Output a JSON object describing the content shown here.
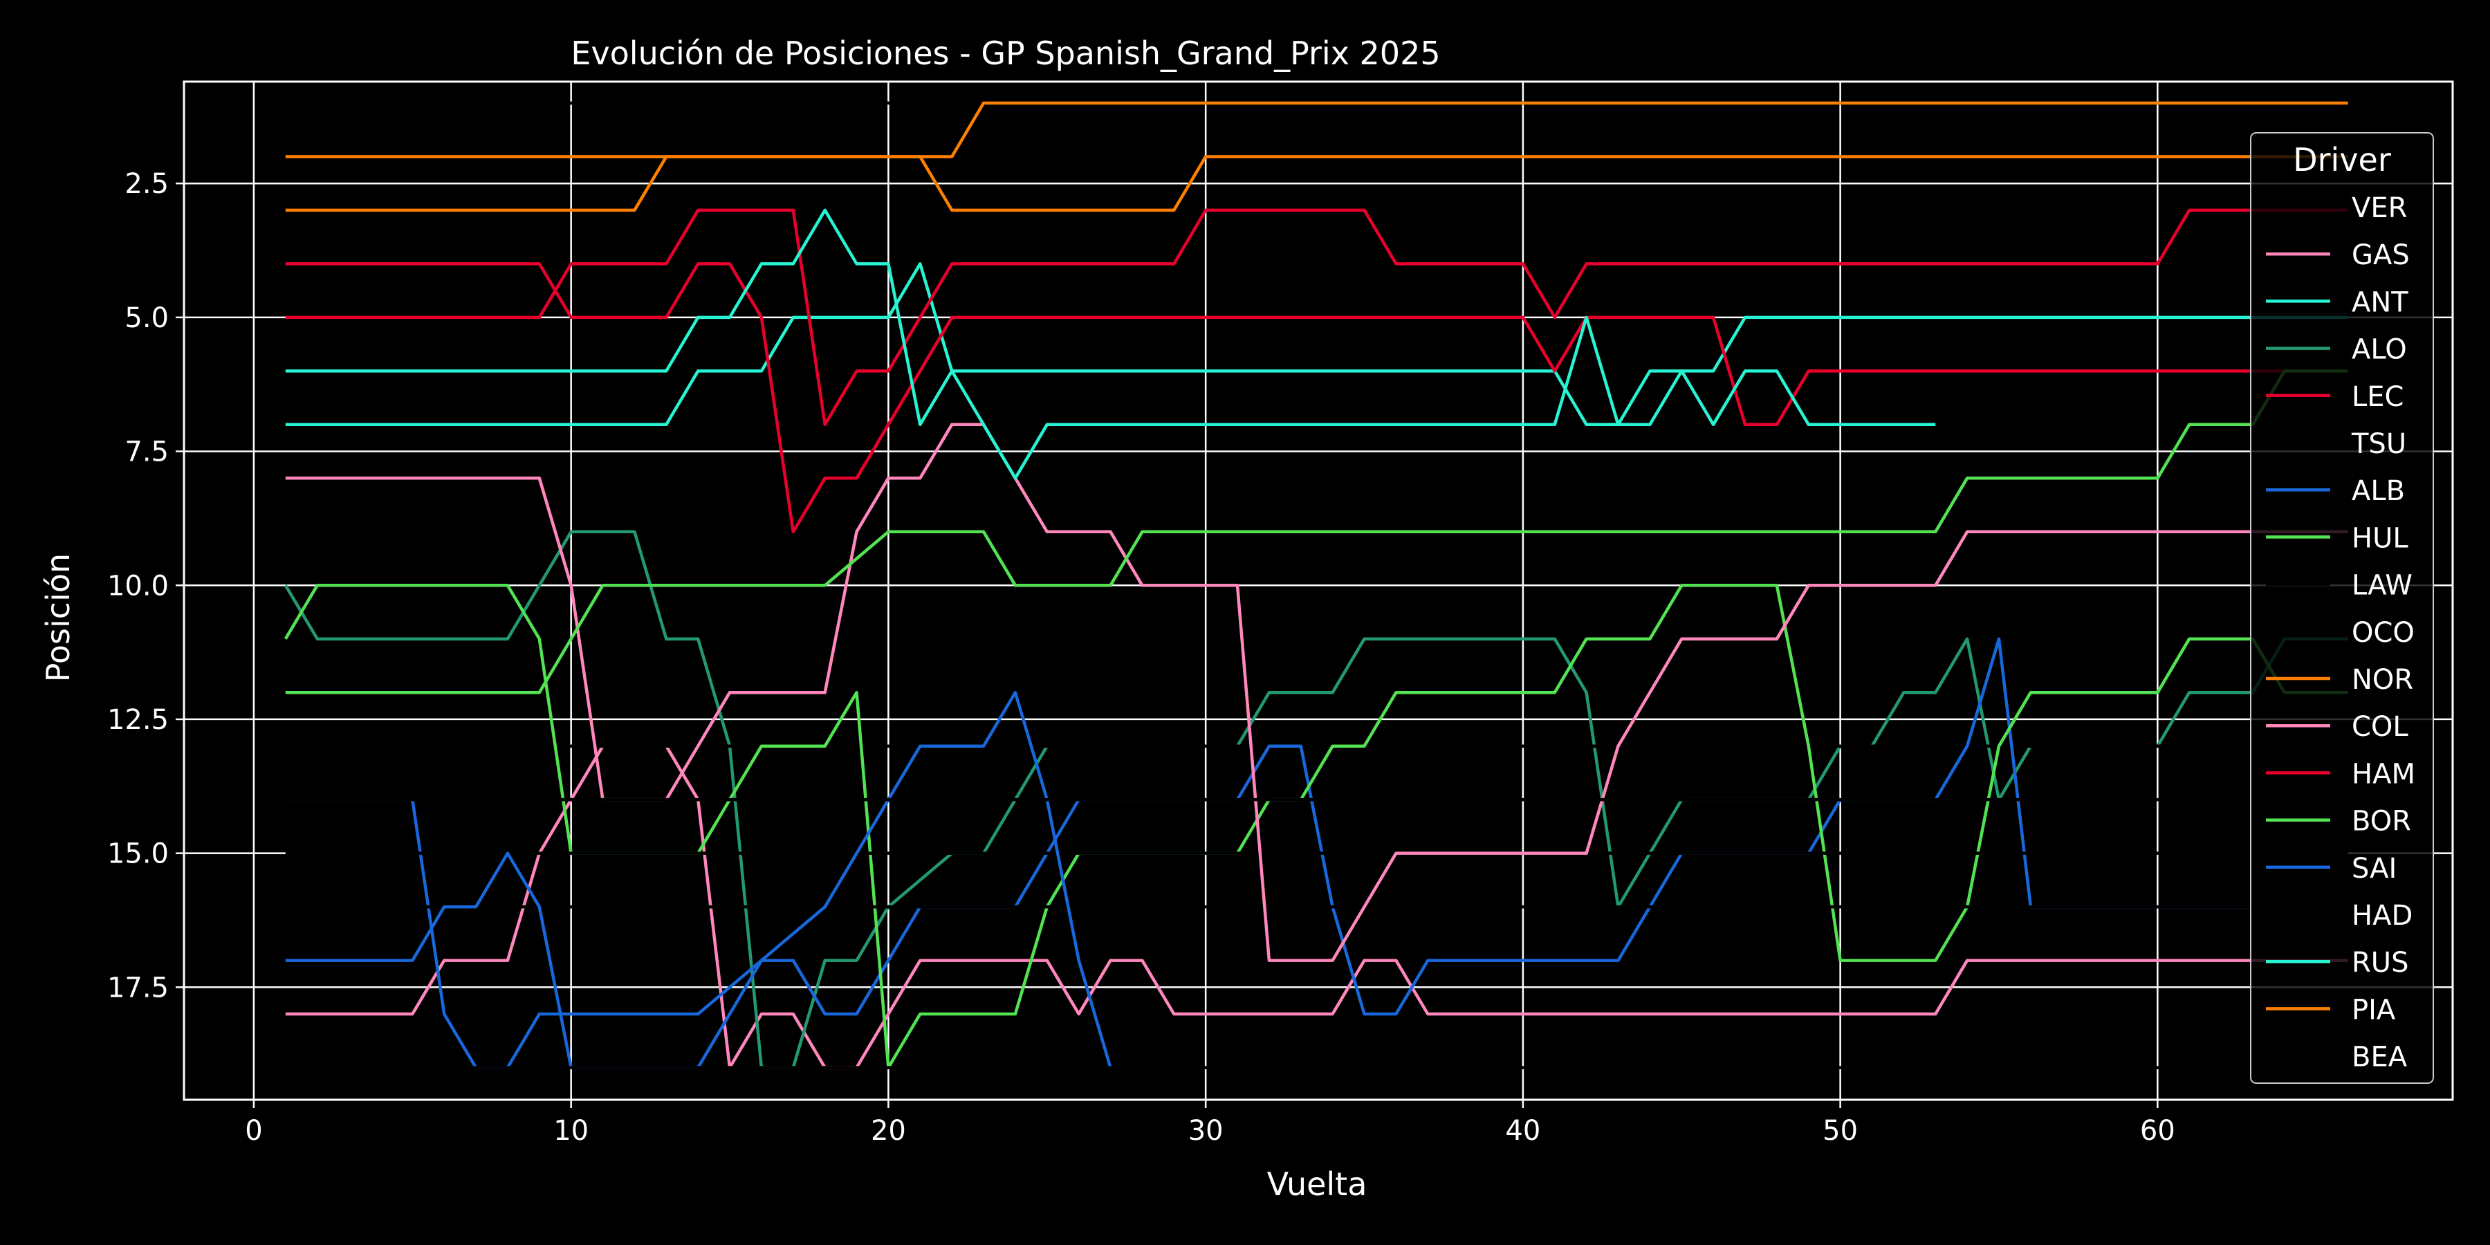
{
  "chart_data": {
    "type": "line",
    "title": "Evolución de Posiciones - GP Spanish_Grand_Prix 2025",
    "xlabel": "Vuelta",
    "ylabel": "Posición",
    "xlim": [
      -2.2,
      69.3
    ],
    "ylim": [
      19.6,
      0.6
    ],
    "y_inverted": true,
    "grid": true,
    "x_ticks": [
      0,
      10,
      20,
      30,
      40,
      50,
      60
    ],
    "x_tick_labels": [
      "0",
      "10",
      "20",
      "30",
      "40",
      "50",
      "60"
    ],
    "y_ticks": [
      2.5,
      5.0,
      7.5,
      10.0,
      12.5,
      15.0,
      17.5
    ],
    "y_tick_labels": [
      "2.5",
      "5.0",
      "7.5",
      "10.0",
      "12.5",
      "15.0",
      "17.5"
    ],
    "legend_title": "Driver",
    "legend_position": "upper right",
    "series": [
      {
        "name": "VER",
        "color": "#000000",
        "points": [
          [
            1,
            1
          ],
          [
            66,
            1
          ]
        ]
      },
      {
        "name": "GAS",
        "color": "#ff87bc",
        "points": [
          [
            1,
            18
          ],
          [
            5,
            18
          ],
          [
            6,
            17
          ],
          [
            8,
            17
          ],
          [
            9,
            15
          ],
          [
            11,
            13
          ],
          [
            13,
            13
          ],
          [
            14,
            14
          ],
          [
            15,
            19
          ],
          [
            16,
            18
          ],
          [
            17,
            18
          ],
          [
            18,
            19
          ],
          [
            19,
            19
          ],
          [
            20,
            18
          ],
          [
            21,
            17
          ],
          [
            25,
            17
          ],
          [
            26,
            18
          ],
          [
            27,
            17
          ],
          [
            28,
            17
          ],
          [
            29,
            18
          ],
          [
            34,
            18
          ],
          [
            35,
            17
          ],
          [
            36,
            17
          ],
          [
            37,
            18
          ],
          [
            53,
            18
          ],
          [
            54,
            17
          ],
          [
            66,
            17
          ]
        ]
      },
      {
        "name": "ANT",
        "color": "#27f4d2",
        "points": [
          [
            1,
            7
          ],
          [
            13,
            7
          ],
          [
            14,
            6
          ],
          [
            16,
            6
          ],
          [
            17,
            5
          ],
          [
            20,
            5
          ],
          [
            21,
            4
          ],
          [
            22,
            6
          ],
          [
            41,
            6
          ],
          [
            42,
            7
          ],
          [
            43,
            7
          ],
          [
            44,
            6
          ],
          [
            46,
            6
          ],
          [
            47,
            5
          ],
          [
            66,
            5
          ]
        ]
      },
      {
        "name": "ALO",
        "color": "#229971",
        "points": [
          [
            1,
            10
          ],
          [
            2,
            11
          ],
          [
            8,
            11
          ],
          [
            10,
            9
          ],
          [
            12,
            9
          ],
          [
            13,
            11
          ],
          [
            14,
            11
          ],
          [
            15,
            13
          ],
          [
            16,
            19
          ],
          [
            17,
            19
          ],
          [
            18,
            17
          ],
          [
            19,
            17
          ],
          [
            20,
            16
          ],
          [
            22,
            15
          ],
          [
            23,
            15
          ],
          [
            25,
            13
          ],
          [
            31,
            13
          ],
          [
            32,
            12
          ],
          [
            34,
            12
          ],
          [
            35,
            11
          ],
          [
            41,
            11
          ],
          [
            42,
            12
          ],
          [
            43,
            16
          ],
          [
            45,
            14
          ],
          [
            49,
            14
          ],
          [
            50,
            13
          ],
          [
            51,
            13
          ],
          [
            52,
            12
          ],
          [
            53,
            12
          ],
          [
            54,
            11
          ],
          [
            55,
            14
          ],
          [
            56,
            13
          ],
          [
            60,
            13
          ],
          [
            61,
            12
          ],
          [
            63,
            12
          ],
          [
            64,
            11
          ],
          [
            66,
            11
          ]
        ]
      },
      {
        "name": "LEC",
        "color": "#e8002d",
        "points": [
          [
            1,
            4
          ],
          [
            9,
            4
          ],
          [
            10,
            5
          ],
          [
            13,
            5
          ],
          [
            14,
            4
          ],
          [
            15,
            4
          ],
          [
            16,
            5
          ],
          [
            17,
            9
          ],
          [
            18,
            8
          ],
          [
            19,
            8
          ],
          [
            20,
            7
          ],
          [
            22,
            5
          ],
          [
            40,
            5
          ],
          [
            41,
            6
          ],
          [
            42,
            5
          ],
          [
            46,
            5
          ],
          [
            47,
            7
          ],
          [
            48,
            7
          ],
          [
            49,
            6
          ],
          [
            66,
            6
          ]
        ]
      },
      {
        "name": "TSU",
        "color": "#000000",
        "points": [
          [
            1,
            13
          ],
          [
            66,
            13
          ]
        ]
      },
      {
        "name": "ALB",
        "color": "#1868db",
        "points": [
          [
            1,
            14
          ],
          [
            5,
            14
          ],
          [
            6,
            18
          ],
          [
            7,
            19
          ],
          [
            8,
            19
          ],
          [
            9,
            18
          ],
          [
            12,
            18
          ],
          [
            13,
            18
          ],
          [
            14,
            18
          ],
          [
            16,
            17
          ],
          [
            17,
            17
          ],
          [
            18,
            18
          ],
          [
            19,
            18
          ],
          [
            21,
            16
          ],
          [
            24,
            16
          ],
          [
            25,
            15
          ],
          [
            26,
            14
          ],
          [
            31,
            14
          ],
          [
            32,
            13
          ],
          [
            33,
            13
          ],
          [
            34,
            16
          ],
          [
            35,
            18
          ],
          [
            36,
            18
          ],
          [
            37,
            17
          ],
          [
            43,
            17
          ],
          [
            45,
            15
          ],
          [
            49,
            15
          ],
          [
            50,
            14
          ],
          [
            53,
            14
          ],
          [
            54,
            13
          ],
          [
            55,
            11
          ],
          [
            56,
            16
          ],
          [
            66,
            16
          ]
        ]
      },
      {
        "name": "HUL",
        "color": "#52e252",
        "points": [
          [
            1,
            11
          ],
          [
            2,
            10
          ],
          [
            8,
            10
          ],
          [
            9,
            11
          ],
          [
            10,
            15
          ],
          [
            14,
            15
          ],
          [
            16,
            13
          ],
          [
            18,
            13
          ],
          [
            19,
            12
          ],
          [
            20,
            19
          ],
          [
            21,
            18
          ],
          [
            24,
            18
          ],
          [
            25,
            16
          ],
          [
            26,
            15
          ],
          [
            31,
            15
          ],
          [
            32,
            14
          ],
          [
            33,
            14
          ],
          [
            34,
            13
          ],
          [
            35,
            13
          ],
          [
            36,
            12
          ],
          [
            41,
            12
          ],
          [
            42,
            11
          ],
          [
            44,
            11
          ],
          [
            45,
            10
          ],
          [
            48,
            10
          ],
          [
            49,
            13
          ],
          [
            50,
            17
          ],
          [
            53,
            17
          ],
          [
            54,
            16
          ],
          [
            55,
            13
          ],
          [
            56,
            12
          ],
          [
            60,
            12
          ],
          [
            61,
            11
          ],
          [
            63,
            11
          ],
          [
            64,
            12
          ],
          [
            66,
            12
          ]
        ]
      },
      {
        "name": "LAW",
        "color": "#000000",
        "points": [
          [
            1,
            16
          ],
          [
            66,
            16
          ]
        ]
      },
      {
        "name": "OCO",
        "color": "#000000",
        "points": [
          [
            1,
            15
          ],
          [
            66,
            15
          ]
        ]
      },
      {
        "name": "NOR",
        "color": "#ff8000",
        "points": [
          [
            1,
            3
          ],
          [
            12,
            3
          ],
          [
            13,
            2
          ],
          [
            21,
            2
          ],
          [
            22,
            3
          ],
          [
            29,
            3
          ],
          [
            30,
            2
          ],
          [
            66,
            2
          ]
        ]
      },
      {
        "name": "COL",
        "color": "#ff87bc",
        "points": [
          [
            1,
            8
          ],
          [
            9,
            8
          ],
          [
            10,
            10
          ],
          [
            11,
            14
          ],
          [
            13,
            14
          ],
          [
            15,
            12
          ],
          [
            18,
            12
          ],
          [
            19,
            9
          ],
          [
            20,
            8
          ],
          [
            21,
            8
          ],
          [
            22,
            7
          ],
          [
            23,
            7
          ],
          [
            25,
            9
          ],
          [
            27,
            9
          ],
          [
            28,
            10
          ],
          [
            31,
            10
          ],
          [
            32,
            17
          ],
          [
            34,
            17
          ],
          [
            36,
            15
          ],
          [
            42,
            15
          ],
          [
            43,
            13
          ],
          [
            45,
            11
          ],
          [
            48,
            11
          ],
          [
            49,
            10
          ],
          [
            53,
            10
          ],
          [
            54,
            9
          ],
          [
            66,
            9
          ]
        ]
      },
      {
        "name": "HAM",
        "color": "#e8002d",
        "points": [
          [
            1,
            5
          ],
          [
            9,
            5
          ],
          [
            10,
            4
          ],
          [
            13,
            4
          ],
          [
            14,
            3
          ],
          [
            17,
            3
          ],
          [
            18,
            7
          ],
          [
            19,
            6
          ],
          [
            20,
            6
          ],
          [
            22,
            4
          ],
          [
            29,
            4
          ],
          [
            30,
            3
          ],
          [
            35,
            3
          ],
          [
            36,
            4
          ],
          [
            40,
            4
          ],
          [
            41,
            5
          ],
          [
            42,
            4
          ],
          [
            46,
            4
          ],
          [
            47,
            4
          ],
          [
            60,
            4
          ],
          [
            61,
            3
          ],
          [
            66,
            3
          ]
        ]
      },
      {
        "name": "BOR",
        "color": "#52e252",
        "points": [
          [
            1,
            12
          ],
          [
            9,
            12
          ],
          [
            11,
            10
          ],
          [
            18,
            10
          ],
          [
            20,
            9
          ],
          [
            23,
            9
          ],
          [
            24,
            10
          ],
          [
            27,
            10
          ],
          [
            28,
            9
          ],
          [
            53,
            9
          ],
          [
            54,
            8
          ],
          [
            60,
            8
          ],
          [
            61,
            7
          ],
          [
            63,
            7
          ],
          [
            64,
            6
          ],
          [
            66,
            6
          ]
        ]
      },
      {
        "name": "SAI",
        "color": "#1868db",
        "points": [
          [
            1,
            17
          ],
          [
            5,
            17
          ],
          [
            6,
            16
          ],
          [
            7,
            16
          ],
          [
            8,
            15
          ],
          [
            9,
            16
          ],
          [
            10,
            19
          ],
          [
            14,
            19
          ],
          [
            16,
            17
          ],
          [
            18,
            16
          ],
          [
            20,
            14
          ],
          [
            21,
            13
          ],
          [
            23,
            13
          ],
          [
            24,
            12
          ],
          [
            25,
            14
          ],
          [
            26,
            17
          ],
          [
            27,
            19
          ]
        ]
      },
      {
        "name": "HAD",
        "color": "#000000",
        "points": [
          [
            1,
            14
          ],
          [
            66,
            14
          ]
        ]
      },
      {
        "name": "RUS",
        "color": "#27f4d2",
        "points": [
          [
            1,
            6
          ],
          [
            13,
            6
          ],
          [
            14,
            5
          ],
          [
            15,
            5
          ],
          [
            16,
            4
          ],
          [
            17,
            4
          ],
          [
            18,
            3
          ],
          [
            19,
            4
          ],
          [
            20,
            4
          ],
          [
            21,
            7
          ],
          [
            22,
            6
          ],
          [
            23,
            7
          ],
          [
            24,
            8
          ],
          [
            25,
            7
          ],
          [
            41,
            7
          ],
          [
            42,
            5
          ],
          [
            43,
            7
          ],
          [
            44,
            7
          ],
          [
            45,
            6
          ],
          [
            46,
            7
          ],
          [
            47,
            6
          ],
          [
            48,
            6
          ],
          [
            49,
            7
          ],
          [
            53,
            7
          ]
        ]
      },
      {
        "name": "PIA",
        "color": "#ff8000",
        "points": [
          [
            1,
            2
          ],
          [
            22,
            2
          ],
          [
            23,
            1
          ],
          [
            28,
            1
          ],
          [
            29,
            1
          ],
          [
            66,
            1
          ]
        ]
      },
      {
        "name": "BEA",
        "color": "#000000",
        "points": [
          [
            1,
            19
          ],
          [
            66,
            19
          ]
        ]
      }
    ]
  }
}
